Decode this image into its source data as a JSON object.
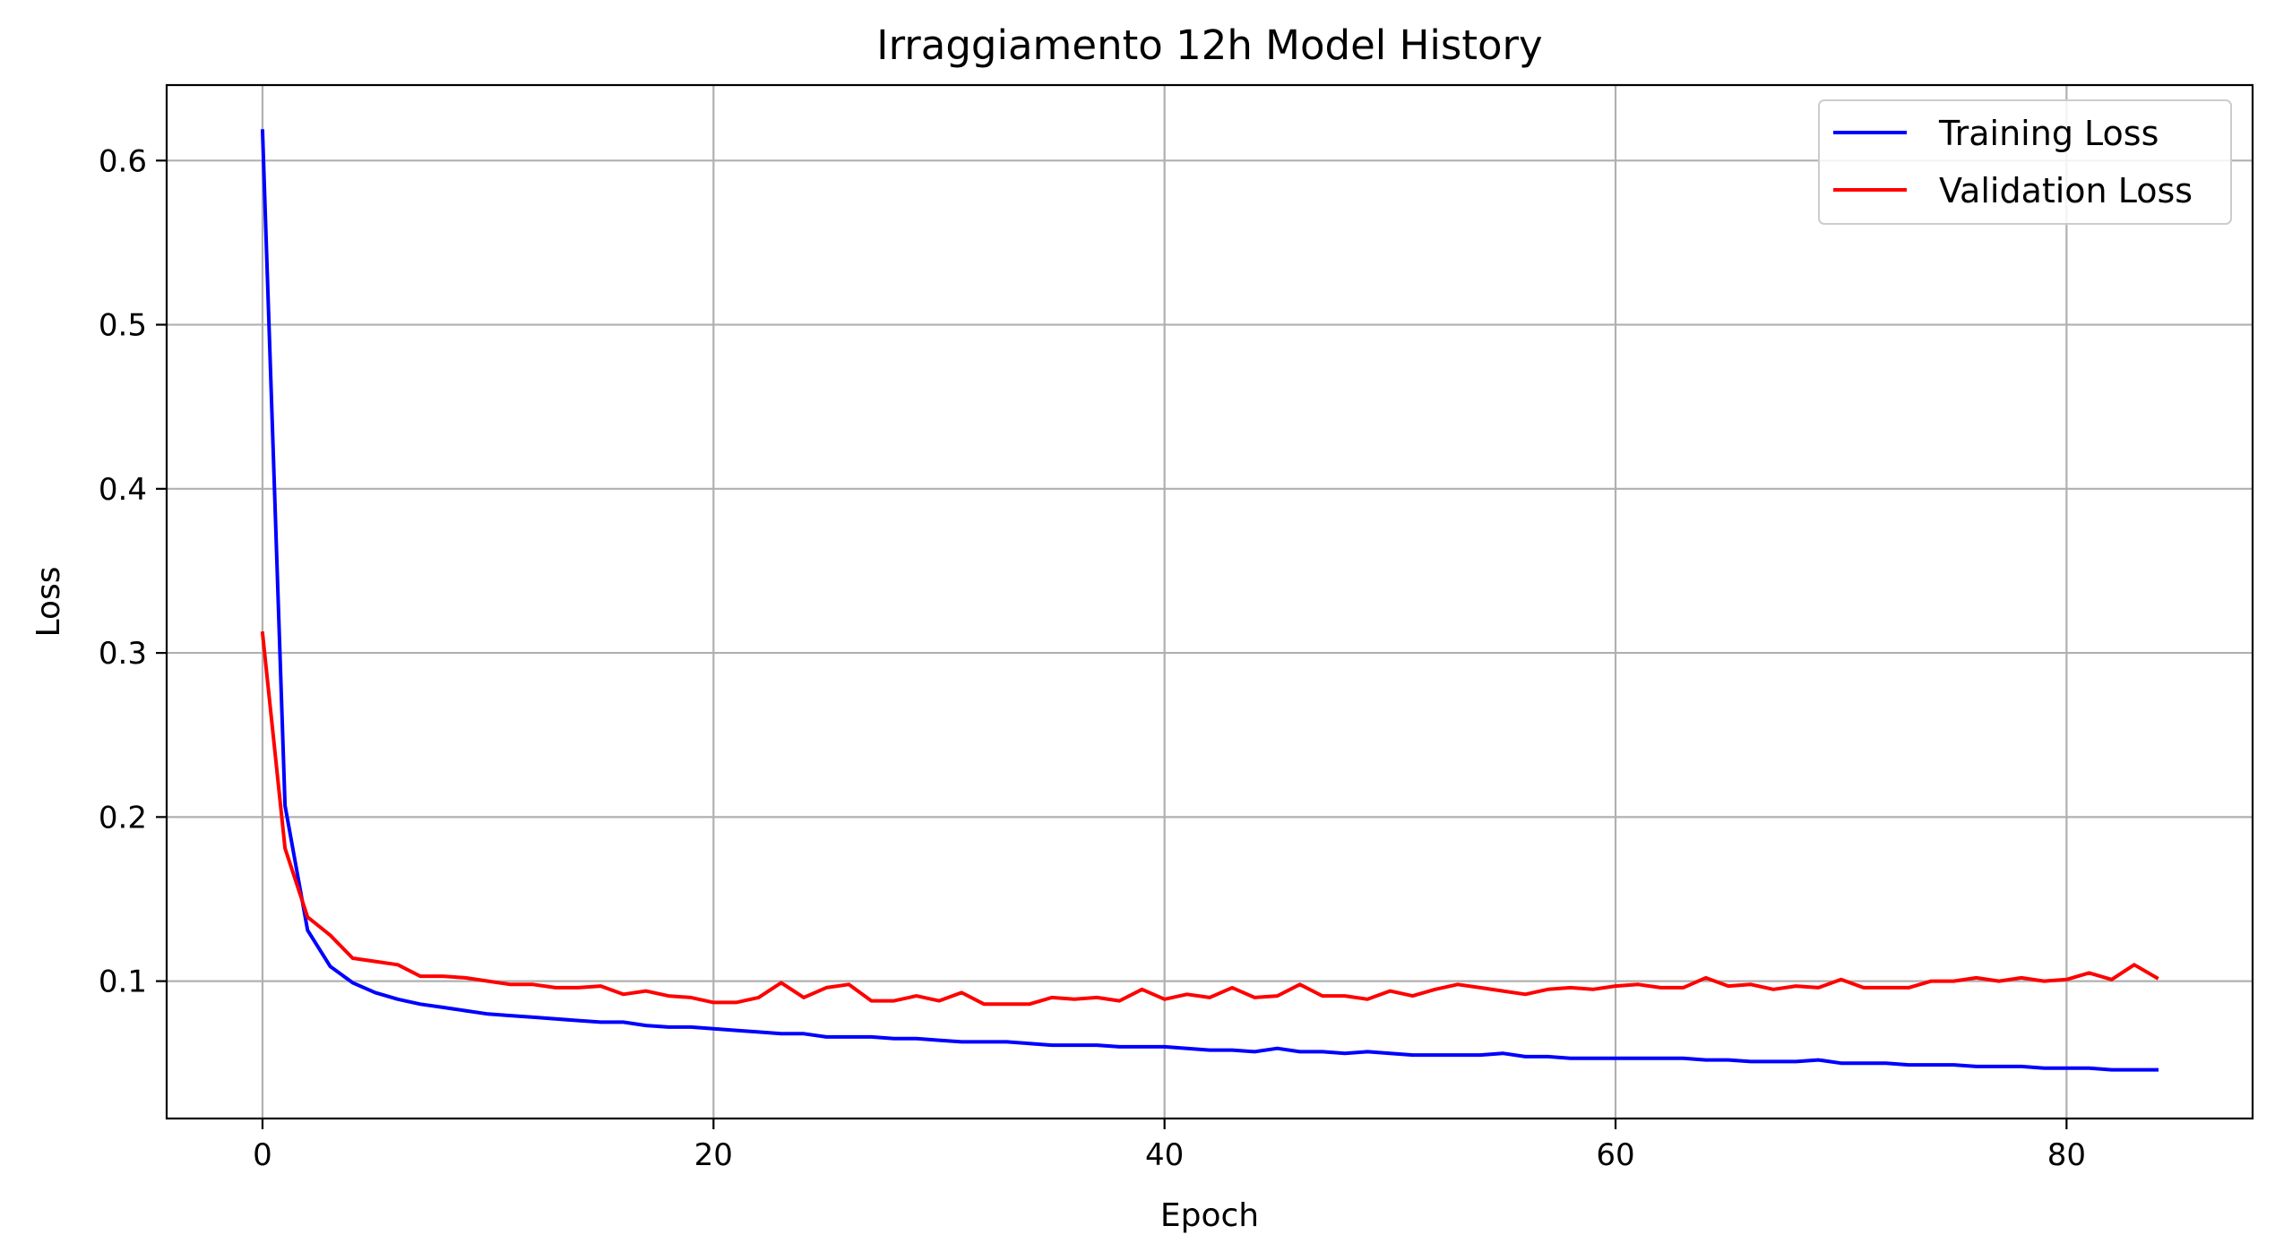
{
  "chart_data": {
    "type": "line",
    "title": "Irraggiamento 12h Model History",
    "xlabel": "Epoch",
    "ylabel": "Loss",
    "xlim": [
      -4.25,
      88.25
    ],
    "ylim": [
      0.0163,
      0.646
    ],
    "xticks": [
      0,
      20,
      40,
      60,
      80
    ],
    "yticks": [
      0.1,
      0.2,
      0.3,
      0.4,
      0.5,
      0.6
    ],
    "grid": true,
    "legend_position": "top-right",
    "series": [
      {
        "name": "Training Loss",
        "color": "#0000ff",
        "x": [
          0,
          1,
          2,
          3,
          4,
          5,
          6,
          7,
          8,
          9,
          10,
          11,
          12,
          13,
          14,
          15,
          16,
          17,
          18,
          19,
          20,
          21,
          22,
          23,
          24,
          25,
          26,
          27,
          28,
          29,
          30,
          31,
          32,
          33,
          34,
          35,
          36,
          37,
          38,
          39,
          40,
          41,
          42,
          43,
          44,
          45,
          46,
          47,
          48,
          49,
          50,
          51,
          52,
          53,
          54,
          55,
          56,
          57,
          58,
          59,
          60,
          61,
          62,
          63,
          64,
          65,
          66,
          67,
          68,
          69,
          70,
          71,
          72,
          73,
          74,
          75,
          76,
          77,
          78,
          79,
          80,
          81,
          82,
          83,
          84
        ],
        "values": [
          0.618,
          0.207,
          0.131,
          0.109,
          0.099,
          0.093,
          0.089,
          0.086,
          0.084,
          0.082,
          0.08,
          0.079,
          0.078,
          0.077,
          0.076,
          0.075,
          0.075,
          0.073,
          0.072,
          0.072,
          0.071,
          0.07,
          0.069,
          0.068,
          0.068,
          0.066,
          0.066,
          0.066,
          0.065,
          0.065,
          0.064,
          0.063,
          0.063,
          0.063,
          0.062,
          0.061,
          0.061,
          0.061,
          0.06,
          0.06,
          0.06,
          0.059,
          0.058,
          0.058,
          0.057,
          0.059,
          0.057,
          0.057,
          0.056,
          0.057,
          0.056,
          0.055,
          0.055,
          0.055,
          0.055,
          0.056,
          0.054,
          0.054,
          0.053,
          0.053,
          0.053,
          0.053,
          0.053,
          0.053,
          0.052,
          0.052,
          0.051,
          0.051,
          0.051,
          0.052,
          0.05,
          0.05,
          0.05,
          0.049,
          0.049,
          0.049,
          0.048,
          0.048,
          0.048,
          0.047,
          0.047,
          0.047,
          0.046,
          0.046,
          0.046
        ]
      },
      {
        "name": "Validation Loss",
        "color": "#ff0000",
        "x": [
          0,
          1,
          2,
          3,
          4,
          5,
          6,
          7,
          8,
          9,
          10,
          11,
          12,
          13,
          14,
          15,
          16,
          17,
          18,
          19,
          20,
          21,
          22,
          23,
          24,
          25,
          26,
          27,
          28,
          29,
          30,
          31,
          32,
          33,
          34,
          35,
          36,
          37,
          38,
          39,
          40,
          41,
          42,
          43,
          44,
          45,
          46,
          47,
          48,
          49,
          50,
          51,
          52,
          53,
          54,
          55,
          56,
          57,
          58,
          59,
          60,
          61,
          62,
          63,
          64,
          65,
          66,
          67,
          68,
          69,
          70,
          71,
          72,
          73,
          74,
          75,
          76,
          77,
          78,
          79,
          80,
          81,
          82,
          83,
          84
        ],
        "values": [
          0.312,
          0.181,
          0.139,
          0.128,
          0.114,
          0.112,
          0.11,
          0.103,
          0.103,
          0.102,
          0.1,
          0.098,
          0.098,
          0.096,
          0.096,
          0.097,
          0.092,
          0.094,
          0.091,
          0.09,
          0.087,
          0.087,
          0.09,
          0.099,
          0.09,
          0.096,
          0.098,
          0.088,
          0.088,
          0.091,
          0.088,
          0.093,
          0.086,
          0.086,
          0.086,
          0.09,
          0.089,
          0.09,
          0.088,
          0.095,
          0.089,
          0.092,
          0.09,
          0.096,
          0.09,
          0.091,
          0.098,
          0.091,
          0.091,
          0.089,
          0.094,
          0.091,
          0.095,
          0.098,
          0.096,
          0.094,
          0.092,
          0.095,
          0.096,
          0.095,
          0.097,
          0.098,
          0.096,
          0.096,
          0.102,
          0.097,
          0.098,
          0.095,
          0.097,
          0.096,
          0.101,
          0.096,
          0.096,
          0.096,
          0.1,
          0.1,
          0.102,
          0.1,
          0.102,
          0.1,
          0.101,
          0.105,
          0.101,
          0.11,
          0.102
        ]
      }
    ]
  }
}
